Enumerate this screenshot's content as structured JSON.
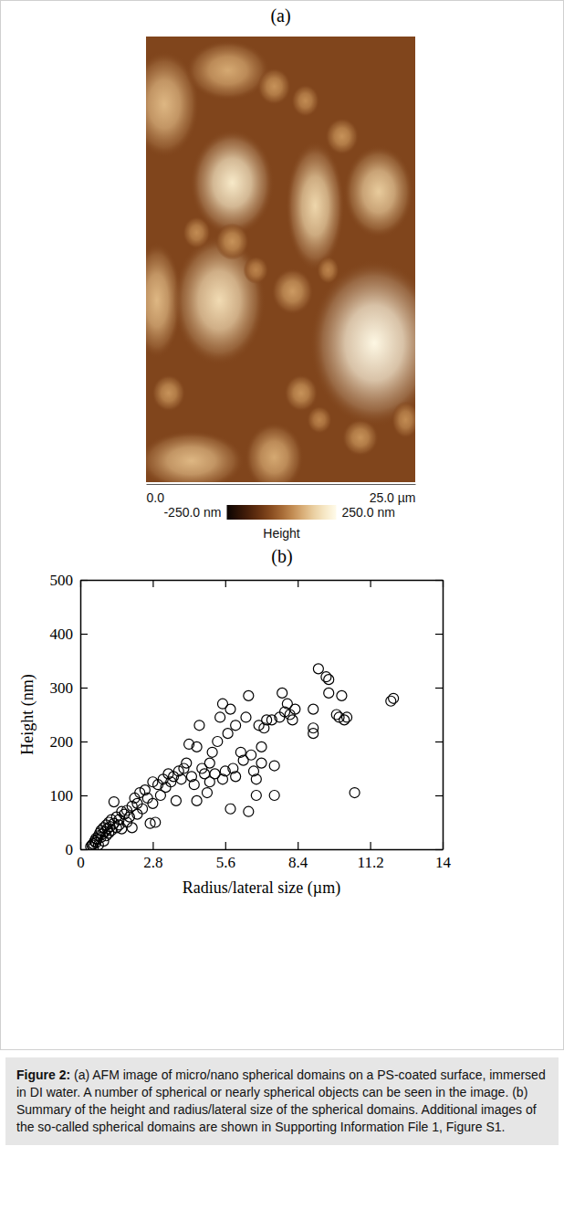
{
  "chart_data": [
    {
      "type": "image",
      "title": "(a)",
      "xlim": [
        0,
        25
      ],
      "ylim": [
        0,
        25
      ],
      "xticks": [
        {
          "value": 0,
          "label": "0.0"
        },
        {
          "value": 25,
          "label": "25.0 µm"
        }
      ],
      "background": -60,
      "domains": [
        {
          "x": 1.7,
          "y": 3.8,
          "rx": 2.5,
          "ry": 2.3,
          "height": 110
        },
        {
          "x": 7.6,
          "y": 1.9,
          "rx": 3.0,
          "ry": 1.3,
          "height": 90
        },
        {
          "x": 11.9,
          "y": 2.8,
          "rx": 1.2,
          "ry": 0.8,
          "height": 60
        },
        {
          "x": 8.0,
          "y": 8.2,
          "rx": 3.0,
          "ry": 2.3,
          "height": 200
        },
        {
          "x": 15.7,
          "y": 9.5,
          "rx": 2.1,
          "ry": 2.8,
          "height": 160
        },
        {
          "x": 21.6,
          "y": 8.7,
          "rx": 2.5,
          "ry": 2.0,
          "height": 140
        },
        {
          "x": 18.2,
          "y": 5.6,
          "rx": 1.2,
          "ry": 0.8,
          "height": 60
        },
        {
          "x": 14.8,
          "y": 3.6,
          "rx": 1.0,
          "ry": 0.7,
          "height": 50
        },
        {
          "x": 1.0,
          "y": 14.8,
          "rx": 1.8,
          "ry": 2.5,
          "height": 110
        },
        {
          "x": 6.8,
          "y": 14.8,
          "rx": 3.3,
          "ry": 2.8,
          "height": 170
        },
        {
          "x": 21.2,
          "y": 17.2,
          "rx": 4.6,
          "ry": 3.6,
          "height": 240
        },
        {
          "x": 13.6,
          "y": 14.3,
          "rx": 1.5,
          "ry": 1.0,
          "height": 70
        },
        {
          "x": 8.0,
          "y": 11.5,
          "rx": 1.2,
          "ry": 0.8,
          "height": 60
        },
        {
          "x": 4.7,
          "y": 11.0,
          "rx": 1.0,
          "ry": 0.7,
          "height": 50
        },
        {
          "x": 4.2,
          "y": 23.8,
          "rx": 3.8,
          "ry": 1.3,
          "height": 110
        },
        {
          "x": 11.9,
          "y": 23.6,
          "rx": 2.1,
          "ry": 1.5,
          "height": 90
        },
        {
          "x": 19.9,
          "y": 22.5,
          "rx": 1.3,
          "ry": 0.8,
          "height": 60
        },
        {
          "x": 14.4,
          "y": 20.0,
          "rx": 1.2,
          "ry": 0.8,
          "height": 60
        },
        {
          "x": 2.1,
          "y": 20.0,
          "rx": 1.2,
          "ry": 0.8,
          "height": 60
        },
        {
          "x": 24.1,
          "y": 21.5,
          "rx": 1.0,
          "ry": 0.8,
          "height": 50
        },
        {
          "x": 16.9,
          "y": 13.1,
          "rx": 0.8,
          "ry": 0.6,
          "height": 40
        },
        {
          "x": 10.2,
          "y": 13.1,
          "rx": 0.9,
          "ry": 0.6,
          "height": 40
        },
        {
          "x": 16.1,
          "y": 21.5,
          "rx": 0.9,
          "ry": 0.6,
          "height": 40
        }
      ],
      "colorbar": {
        "range": [
          -250,
          250
        ],
        "label": "Height",
        "ticks": [
          {
            "value": -250,
            "label": "-250.0 nm"
          },
          {
            "value": 250,
            "label": "250.0 nm"
          }
        ]
      }
    },
    {
      "type": "scatter",
      "title": "(b)",
      "x_label": "Radius/lateral size (µm)",
      "y_label": "Height (nm)",
      "xlim": [
        0,
        14
      ],
      "ylim": [
        0,
        500
      ],
      "xticks": [
        0,
        2.8,
        5.6,
        8.4,
        11.2,
        14
      ],
      "yticks": [
        0,
        100,
        200,
        300,
        400,
        500
      ],
      "marker": "open-circle",
      "color": "#000000",
      "x": [
        0.4,
        0.45,
        0.5,
        0.5,
        0.55,
        0.6,
        0.6,
        0.65,
        0.7,
        0.7,
        0.75,
        0.8,
        0.8,
        0.85,
        0.9,
        0.9,
        0.95,
        1.0,
        1.0,
        1.05,
        1.1,
        1.1,
        1.15,
        1.2,
        1.2,
        1.3,
        1.3,
        1.4,
        1.4,
        1.5,
        1.5,
        1.6,
        1.6,
        1.7,
        1.8,
        1.8,
        1.9,
        2.0,
        2.0,
        2.1,
        2.2,
        2.2,
        2.3,
        2.4,
        2.5,
        2.6,
        2.7,
        2.8,
        2.8,
        2.9,
        3.0,
        3.1,
        3.2,
        3.3,
        3.4,
        3.5,
        3.6,
        3.7,
        3.8,
        3.9,
        4.0,
        4.1,
        4.2,
        4.3,
        4.4,
        4.5,
        4.5,
        4.6,
        4.7,
        4.8,
        4.9,
        5.0,
        5.0,
        5.1,
        5.2,
        5.3,
        5.4,
        5.5,
        5.5,
        5.6,
        5.7,
        5.8,
        5.8,
        5.9,
        6.0,
        6.0,
        6.2,
        6.3,
        6.4,
        6.5,
        6.5,
        6.6,
        6.7,
        6.8,
        6.8,
        6.9,
        7.0,
        7.0,
        7.1,
        7.2,
        7.4,
        7.5,
        7.5,
        7.7,
        7.8,
        7.9,
        8.0,
        8.1,
        8.2,
        8.3,
        9.0,
        9.0,
        9.0,
        9.2,
        9.5,
        9.6,
        9.6,
        9.9,
        10.0,
        10.1,
        10.2,
        10.3,
        10.6,
        12.0,
        12.1
      ],
      "values": [
        5,
        8,
        10,
        3,
        15,
        12,
        20,
        18,
        25,
        8,
        30,
        22,
        35,
        28,
        40,
        15,
        32,
        45,
        25,
        38,
        50,
        30,
        42,
        35,
        55,
        48,
        88,
        40,
        60,
        55,
        45,
        70,
        38,
        65,
        72,
        50,
        60,
        80,
        40,
        95,
        85,
        65,
        105,
        75,
        110,
        95,
        48,
        125,
        85,
        50,
        120,
        100,
        130,
        115,
        140,
        125,
        135,
        90,
        145,
        130,
        150,
        160,
        195,
        135,
        120,
        90,
        190,
        230,
        150,
        140,
        105,
        125,
        160,
        180,
        140,
        200,
        245,
        270,
        130,
        145,
        215,
        260,
        75,
        150,
        230,
        135,
        180,
        165,
        245,
        285,
        70,
        175,
        145,
        100,
        130,
        230,
        190,
        160,
        225,
        240,
        240,
        100,
        155,
        245,
        290,
        255,
        270,
        250,
        240,
        260,
        225,
        215,
        260,
        335,
        320,
        315,
        290,
        250,
        245,
        285,
        240,
        245,
        105,
        275,
        280
      ]
    }
  ],
  "caption": {
    "label": "Figure 2:",
    "text": "(a) AFM image of micro/nano spherical domains on a PS-coated surface, immersed in DI water. A number of spherical or nearly spherical objects can be seen in the image. (b) Summary of the height and radius/lateral size of the spherical domains. Additional images of the so-called spherical domains are shown in Supporting Information File 1, Figure S1."
  }
}
